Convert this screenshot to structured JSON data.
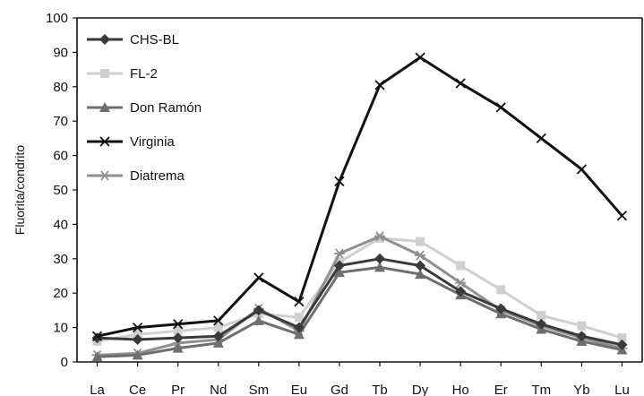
{
  "chart_data": {
    "type": "line",
    "title": "",
    "xlabel": "",
    "ylabel": "Fluorita/condrito",
    "ylim": [
      0,
      100
    ],
    "yticks": [
      0,
      10,
      20,
      30,
      40,
      50,
      60,
      70,
      80,
      90,
      100
    ],
    "categories": [
      "La",
      "Ce",
      "Pr",
      "Nd",
      "Sm",
      "Eu",
      "Gd",
      "Tb",
      "Dy",
      "Ho",
      "Er",
      "Tm",
      "Yb",
      "Lu"
    ],
    "grid": false,
    "legend_position": "top-left",
    "series": [
      {
        "name": "CHS-BL",
        "color": "#3a3a3a",
        "marker": "diamond",
        "values": [
          7,
          6.5,
          7,
          7.5,
          15,
          10,
          28,
          30,
          28,
          20.5,
          15.5,
          11,
          7.5,
          5
        ]
      },
      {
        "name": "FL-2",
        "color": "#cfcfcf",
        "marker": "square",
        "values": [
          6,
          8,
          9,
          10,
          14,
          13,
          29,
          36,
          35,
          28,
          21,
          13.5,
          10.5,
          7
        ]
      },
      {
        "name": "Don Ramón",
        "color": "#6e6e6e",
        "marker": "triangle",
        "values": [
          1.5,
          2,
          4,
          5.5,
          12,
          8,
          26,
          27.5,
          25.5,
          19.5,
          14,
          9.5,
          6,
          3.5
        ]
      },
      {
        "name": "Virginia",
        "color": "#111111",
        "marker": "x",
        "values": [
          7.5,
          10,
          11,
          12,
          24.5,
          17.5,
          52.5,
          80.5,
          88.5,
          81,
          74,
          65,
          56,
          42.5
        ]
      },
      {
        "name": "Diatrema",
        "color": "#8f8f8f",
        "marker": "asterisk",
        "values": [
          2,
          2.5,
          5.5,
          6.5,
          15.5,
          9,
          31.5,
          36.5,
          31,
          23,
          15,
          10.5,
          7,
          4
        ]
      }
    ]
  }
}
